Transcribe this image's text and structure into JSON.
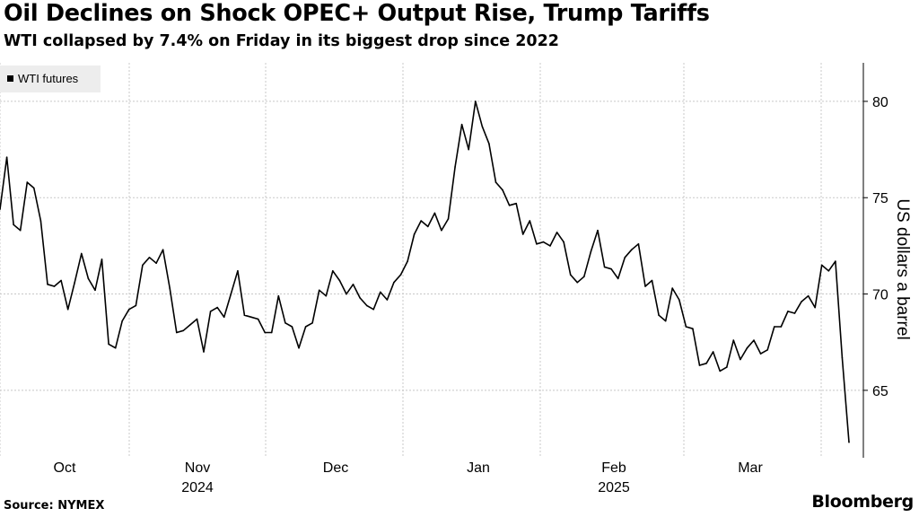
{
  "title": "Oil Declines on Shock OPEC+ Output Rise, Trump Tariffs",
  "subtitle": "WTI collapsed by 7.4% on Friday in its biggest drop since 2022",
  "source": "Source: NYMEX",
  "brand": "Bloomberg",
  "chart_data": {
    "type": "line",
    "title": "Oil Declines on Shock OPEC+ Output Rise, Trump Tariffs",
    "subtitle": "WTI collapsed by 7.4% on Friday in its biggest drop since 2022",
    "ylabel": "US dollars a barrel",
    "xlabel": "",
    "ylim": [
      61.5,
      82
    ],
    "yticks": [
      65,
      70,
      75,
      80
    ],
    "y_axis_side": "right",
    "grid": true,
    "legend": {
      "position": "top-left",
      "entries": [
        "WTI futures"
      ]
    },
    "x_tick_labels": [
      {
        "label": "Oct",
        "sub": ""
      },
      {
        "label": "Nov",
        "sub": "2024"
      },
      {
        "label": "Dec",
        "sub": ""
      },
      {
        "label": "Jan",
        "sub": ""
      },
      {
        "label": "Feb",
        "sub": "2025"
      },
      {
        "label": "Mar",
        "sub": ""
      }
    ],
    "series": [
      {
        "name": "WTI futures",
        "color": "#000000",
        "values": [
          74.4,
          77.1,
          73.6,
          73.3,
          75.8,
          75.5,
          73.8,
          70.5,
          70.4,
          70.7,
          69.2,
          70.6,
          72.1,
          70.8,
          70.2,
          71.8,
          67.4,
          67.2,
          68.6,
          69.2,
          69.4,
          71.5,
          71.9,
          71.6,
          72.3,
          70.3,
          68.0,
          68.1,
          68.4,
          68.7,
          67.0,
          69.1,
          69.3,
          68.8,
          70.0,
          71.2,
          68.9,
          68.8,
          68.7,
          68.0,
          68.0,
          69.9,
          68.5,
          68.3,
          67.2,
          68.3,
          68.5,
          70.2,
          69.9,
          71.2,
          70.7,
          70.0,
          70.5,
          69.8,
          69.4,
          69.2,
          70.1,
          69.7,
          70.6,
          71.0,
          71.7,
          73.1,
          73.8,
          73.5,
          74.2,
          73.3,
          73.9,
          76.6,
          78.8,
          77.5,
          80.0,
          78.7,
          77.8,
          75.8,
          75.4,
          74.6,
          74.7,
          73.1,
          73.8,
          72.6,
          72.7,
          72.5,
          73.2,
          72.7,
          71.0,
          70.6,
          70.9,
          72.2,
          73.3,
          71.4,
          71.3,
          70.8,
          71.9,
          72.3,
          72.6,
          70.4,
          70.7,
          68.9,
          68.6,
          70.3,
          69.7,
          68.3,
          68.2,
          66.3,
          66.4,
          67.0,
          66.0,
          66.2,
          67.6,
          66.6,
          67.2,
          67.6,
          66.9,
          67.1,
          68.3,
          68.3,
          69.1,
          69.0,
          69.6,
          69.9,
          69.3,
          71.5,
          71.2,
          71.7,
          66.7,
          62.3
        ]
      }
    ]
  }
}
